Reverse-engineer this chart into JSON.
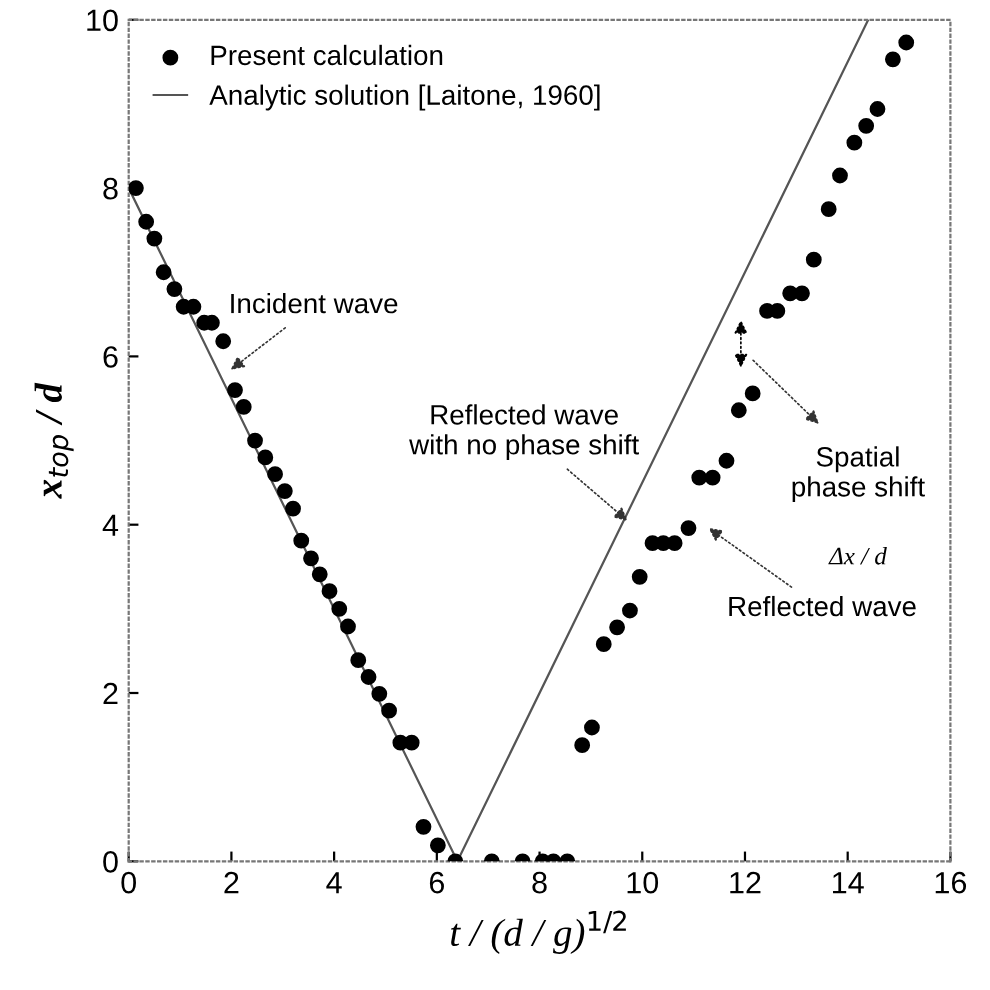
{
  "chart_data": {
    "type": "scatter",
    "xlabel": "t / (d / g)$^{1/2}$",
    "ylabel": "x$_{top}$ / d",
    "xlim": [
      0,
      16
    ],
    "ylim": [
      0,
      10
    ],
    "xticks": [
      0,
      2,
      4,
      6,
      8,
      10,
      12,
      14,
      16
    ],
    "yticks": [
      0,
      2,
      4,
      6,
      8,
      10
    ],
    "grid": false,
    "legend": "top left",
    "series": [
      {
        "name": "Present calculation",
        "marker": "circle",
        "color": "#000000",
        "x": [
          0.14,
          0.34,
          0.5,
          0.68,
          0.89,
          1.07,
          1.26,
          1.47,
          1.62,
          1.84,
          2.07,
          2.24,
          2.46,
          2.66,
          2.85,
          3.04,
          3.2,
          3.36,
          3.55,
          3.72,
          3.91,
          4.1,
          4.27,
          4.47,
          4.67,
          4.88,
          5.07,
          5.29,
          5.51,
          5.74,
          6.02,
          6.36,
          7.07,
          7.67,
          8.06,
          8.27,
          8.54,
          8.83,
          9.02,
          9.25,
          9.51,
          9.76,
          9.95,
          10.2,
          10.41,
          10.63,
          10.9,
          11.11,
          11.37,
          11.64,
          11.88,
          12.15,
          12.43,
          12.63,
          12.88,
          13.11,
          13.34,
          13.63,
          13.85,
          14.13,
          14.36,
          14.58,
          14.88,
          15.14
        ],
        "values": [
          8.0,
          7.6,
          7.4,
          7.0,
          6.8,
          6.59,
          6.59,
          6.4,
          6.4,
          6.18,
          5.6,
          5.4,
          5.0,
          4.8,
          4.6,
          4.4,
          4.19,
          3.81,
          3.6,
          3.41,
          3.21,
          3.0,
          2.79,
          2.39,
          2.19,
          1.99,
          1.79,
          1.41,
          1.41,
          0.41,
          0.19,
          0,
          0,
          0,
          0,
          0,
          0,
          1.38,
          1.59,
          2.58,
          2.78,
          2.98,
          3.38,
          3.78,
          3.78,
          3.78,
          3.96,
          4.56,
          4.56,
          4.76,
          5.36,
          5.56,
          6.54,
          6.54,
          6.75,
          6.75,
          7.15,
          7.75,
          8.15,
          8.54,
          8.74,
          8.94,
          9.53,
          9.73
        ]
      },
      {
        "name": "Analytic solution [Laitone, 1960]",
        "type": "line",
        "marker": "none",
        "line_style": "solid",
        "color": "#555555",
        "x": [
          0,
          6.4,
          14.4
        ],
        "values": [
          8,
          0,
          10
        ]
      }
    ],
    "annotations": [
      {
        "text": "Incident wave",
        "x": 1.9,
        "y": 5.8
      },
      {
        "text": "Reflected wave\nwith no phase shift",
        "x": 9.8,
        "y": 4.0
      },
      "Spatial\nphase shift",
      "Δx / d",
      {
        "text": "Reflected wave",
        "x": 11.2,
        "y": 4.0
      }
    ]
  }
}
